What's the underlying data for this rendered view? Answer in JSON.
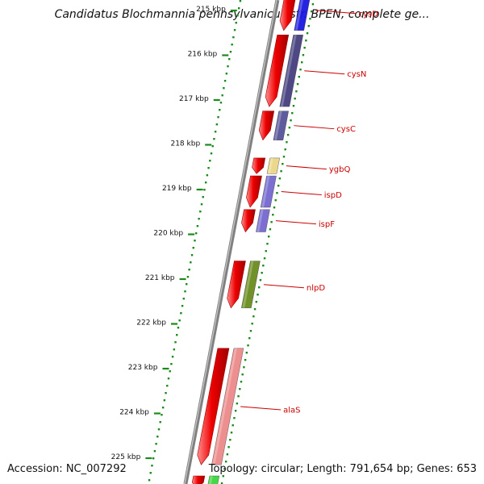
{
  "title": "Candidatus Blochmannia pennsylvanicus str. BPEN, complete ge...",
  "accession": "Accession: NC_007292",
  "topology": "Topology: circular; Length: 791,654 bp; Genes: 653",
  "ticks": [
    {
      "label": "215 kbp",
      "pos": 215
    },
    {
      "label": "216 kbp",
      "pos": 216
    },
    {
      "label": "217 kbp",
      "pos": 217
    },
    {
      "label": "218 kbp",
      "pos": 218
    },
    {
      "label": "219 kbp",
      "pos": 219
    },
    {
      "label": "220 kbp",
      "pos": 220
    },
    {
      "label": "221 kbp",
      "pos": 221
    },
    {
      "label": "222 kbp",
      "pos": 222
    },
    {
      "label": "223 kbp",
      "pos": 223
    },
    {
      "label": "224 kbp",
      "pos": 224
    },
    {
      "label": "225 kbp",
      "pos": 225
    }
  ],
  "genes": [
    {
      "name": "cysD",
      "start": 214.6,
      "end": 215.5,
      "cog_color": "#1a1ae0"
    },
    {
      "name": "cysN",
      "start": 215.6,
      "end": 217.2,
      "cog_color": "#45407e"
    },
    {
      "name": "cysC",
      "start": 217.3,
      "end": 217.95,
      "cog_color": "#57539a"
    },
    {
      "name": "ygbQ",
      "start": 218.35,
      "end": 218.7,
      "cog_color": "#ecd685"
    },
    {
      "name": "ispD",
      "start": 218.75,
      "end": 219.45,
      "cog_color": "#7468d0"
    },
    {
      "name": "ispF",
      "start": 219.5,
      "end": 220.0,
      "cog_color": "#7468d0"
    },
    {
      "name": "nlpD",
      "start": 220.65,
      "end": 221.7,
      "cog_color": "#6a8c1e"
    },
    {
      "name": "alaS",
      "start": 222.6,
      "end": 225.2,
      "cog_color": "#ee8a8a"
    },
    {
      "name": "",
      "start": 225.45,
      "end": 225.7,
      "cog_color": "#3dd63d"
    }
  ],
  "colors": {
    "gene": "#ee0000",
    "label": "#cc0000",
    "tick": "#1a8a1a",
    "backbone": "#808080"
  }
}
